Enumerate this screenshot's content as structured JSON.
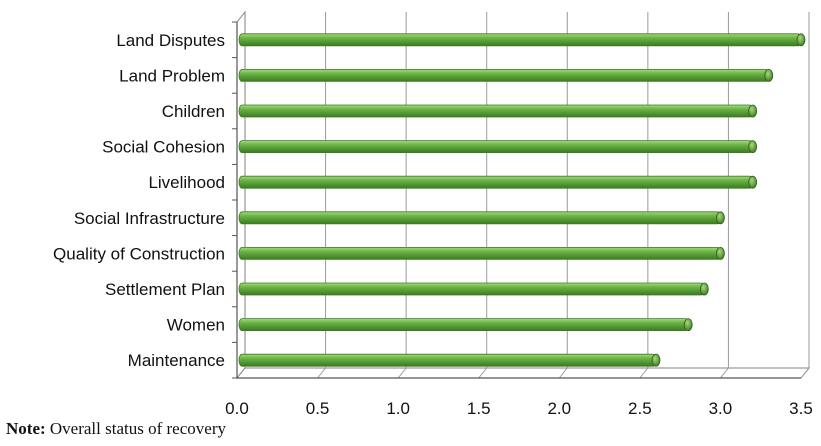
{
  "chart_data": {
    "type": "bar",
    "orientation": "horizontal",
    "categories": [
      "Land Disputes",
      "Land Problem",
      "Children",
      "Social Cohesion",
      "Livelihood",
      "Social Infrastructure",
      "Quality of Construction",
      "Settlement Plan",
      "Women",
      "Maintenance"
    ],
    "values": [
      3.5,
      3.3,
      3.2,
      3.2,
      3.2,
      3.0,
      3.0,
      2.9,
      2.8,
      2.6
    ],
    "xlim": [
      0,
      3.5
    ],
    "xticks": [
      "0.0",
      "0.5",
      "1.0",
      "1.5",
      "2.0",
      "2.5",
      "3.0",
      "3.5"
    ],
    "grid": "vertical",
    "bar_color": "#6ab446",
    "bar_color_dark": "#3d7a22",
    "bar_color_light": "#a6da7c",
    "title": "",
    "xlabel": "",
    "ylabel": ""
  },
  "note": {
    "label": "Note:",
    "text": "Overall status of recovery"
  }
}
